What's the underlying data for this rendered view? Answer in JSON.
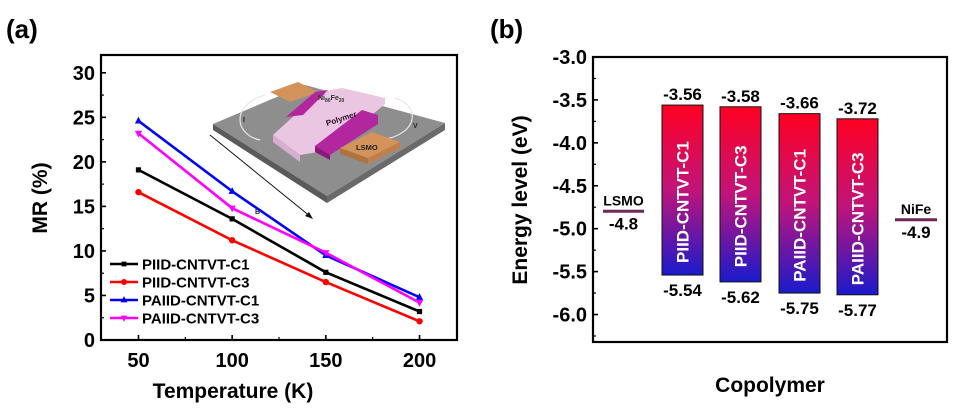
{
  "chart_data": [
    {
      "panel_label": "(a)",
      "type": "line",
      "title": "",
      "xlabel": "Temperature (K)",
      "ylabel": "MR (%)",
      "xlim": [
        30,
        220
      ],
      "ylim": [
        0,
        32
      ],
      "xticks": [
        50,
        100,
        150,
        200
      ],
      "yticks": [
        0,
        5,
        10,
        15,
        20,
        25,
        30
      ],
      "grid": false,
      "legend_position": "bottom-left",
      "x": [
        50,
        100,
        150,
        200
      ],
      "series": [
        {
          "name": "PIID-CNTVT-C1",
          "color": "#000000",
          "marker": "square",
          "values": [
            19.1,
            13.6,
            7.6,
            3.2
          ]
        },
        {
          "name": "PIID-CNTVT-C3",
          "color": "#ff0000",
          "marker": "circle",
          "values": [
            16.6,
            11.2,
            6.5,
            2.1
          ]
        },
        {
          "name": "PAIID-CNTVT-C1",
          "color": "#0000ff",
          "marker": "triangle-up",
          "values": [
            24.6,
            16.7,
            9.5,
            4.8
          ]
        },
        {
          "name": "PAIID-CNTVT-C3",
          "color": "#ff00ff",
          "marker": "triangle-down",
          "values": [
            23.2,
            14.8,
            9.8,
            4.2
          ]
        }
      ],
      "inset": {
        "description": "device schematic",
        "labels": {
          "nife": "Ni",
          "nife_sub1": "80",
          "fe": "Fe",
          "nife_sub2": "20",
          "polymer": "Polymer",
          "lsmo": "LSMO",
          "current": "I",
          "voltage": "V",
          "field": "B"
        }
      }
    },
    {
      "panel_label": "(b)",
      "type": "bar",
      "title": "",
      "xlabel": "Copolymer",
      "ylabel": "Energy level (eV)",
      "ylim": [
        -6.32,
        -3.0
      ],
      "yticks": [
        -3.0,
        -3.5,
        -4.0,
        -4.5,
        -5.0,
        -5.5,
        -6.0
      ],
      "ytick_labels": [
        "-3.0",
        "-3.5",
        "-4.0",
        "-4.5",
        "-5.0",
        "-5.5",
        "-6.0"
      ],
      "grid": false,
      "bars": [
        {
          "name": "PIID-CNTVT-C1",
          "lumo": -3.56,
          "homo": -5.54,
          "lumo_label": "-3.56",
          "homo_label": "-5.54"
        },
        {
          "name": "PIID-CNTVT-C3",
          "lumo": -3.58,
          "homo": -5.62,
          "lumo_label": "-3.58",
          "homo_label": "-5.62"
        },
        {
          "name": "PAIID-CNTVT-C1",
          "lumo": -3.66,
          "homo": -5.75,
          "lumo_label": "-3.66",
          "homo_label": "-5.75"
        },
        {
          "name": "PAIID-CNTVT-C3",
          "lumo": -3.72,
          "homo": -5.77,
          "lumo_label": "-3.72",
          "homo_label": "-5.77"
        }
      ],
      "gradient_colors": {
        "top": "#ff0022",
        "bottom": "#1a1acc"
      },
      "electrodes": [
        {
          "name": "LSMO",
          "level": -4.8,
          "label": "-4.8",
          "color": "#7a1f5c"
        },
        {
          "name": "NiFe",
          "level": -4.9,
          "label": "-4.9",
          "color": "#7a1f5c"
        }
      ]
    }
  ]
}
